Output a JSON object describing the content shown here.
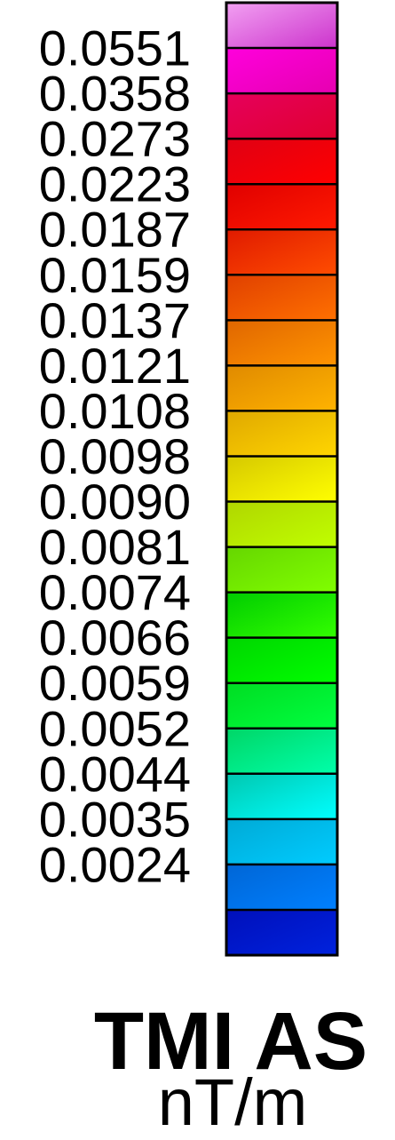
{
  "chart_data": {
    "type": "heatmap",
    "title": "TMI AS",
    "unit": "nT/m",
    "tick_labels": [
      "0.0551",
      "0.0358",
      "0.0273",
      "0.0223",
      "0.0187",
      "0.0159",
      "0.0137",
      "0.0121",
      "0.0108",
      "0.0098",
      "0.0090",
      "0.0081",
      "0.0074",
      "0.0066",
      "0.0059",
      "0.0052",
      "0.0044",
      "0.0035",
      "0.0024"
    ],
    "bins": [
      {
        "color_top": "#f2a0f2",
        "color_bottom": "#cc33cc"
      },
      {
        "color_top": "#ff00dd",
        "color_bottom": "#e600b0"
      },
      {
        "color_top": "#e6005c",
        "color_bottom": "#e00030"
      },
      {
        "color_top": "#e00014",
        "color_bottom": "#ff0000"
      },
      {
        "color_top": "#e00000",
        "color_bottom": "#ff1a00"
      },
      {
        "color_top": "#e01a00",
        "color_bottom": "#ff4d00"
      },
      {
        "color_top": "#e04000",
        "color_bottom": "#ff7000"
      },
      {
        "color_top": "#e06600",
        "color_bottom": "#ff9400"
      },
      {
        "color_top": "#e08a00",
        "color_bottom": "#ffb300"
      },
      {
        "color_top": "#e0a800",
        "color_bottom": "#ffd600"
      },
      {
        "color_top": "#d6c800",
        "color_bottom": "#ffff00"
      },
      {
        "color_top": "#b0d600",
        "color_bottom": "#c0ff00"
      },
      {
        "color_top": "#66d600",
        "color_bottom": "#80ff00"
      },
      {
        "color_top": "#00cc00",
        "color_bottom": "#33ff00"
      },
      {
        "color_top": "#00d600",
        "color_bottom": "#00ff00"
      },
      {
        "color_top": "#00dd22",
        "color_bottom": "#00ff40"
      },
      {
        "color_top": "#00d666",
        "color_bottom": "#00ffaa"
      },
      {
        "color_top": "#00c8b0",
        "color_bottom": "#00ffff"
      },
      {
        "color_top": "#00aad6",
        "color_bottom": "#00ccff"
      },
      {
        "color_top": "#0066d6",
        "color_bottom": "#0080ff"
      },
      {
        "color_top": "#0010bb",
        "color_bottom": "#0022dd"
      }
    ]
  }
}
